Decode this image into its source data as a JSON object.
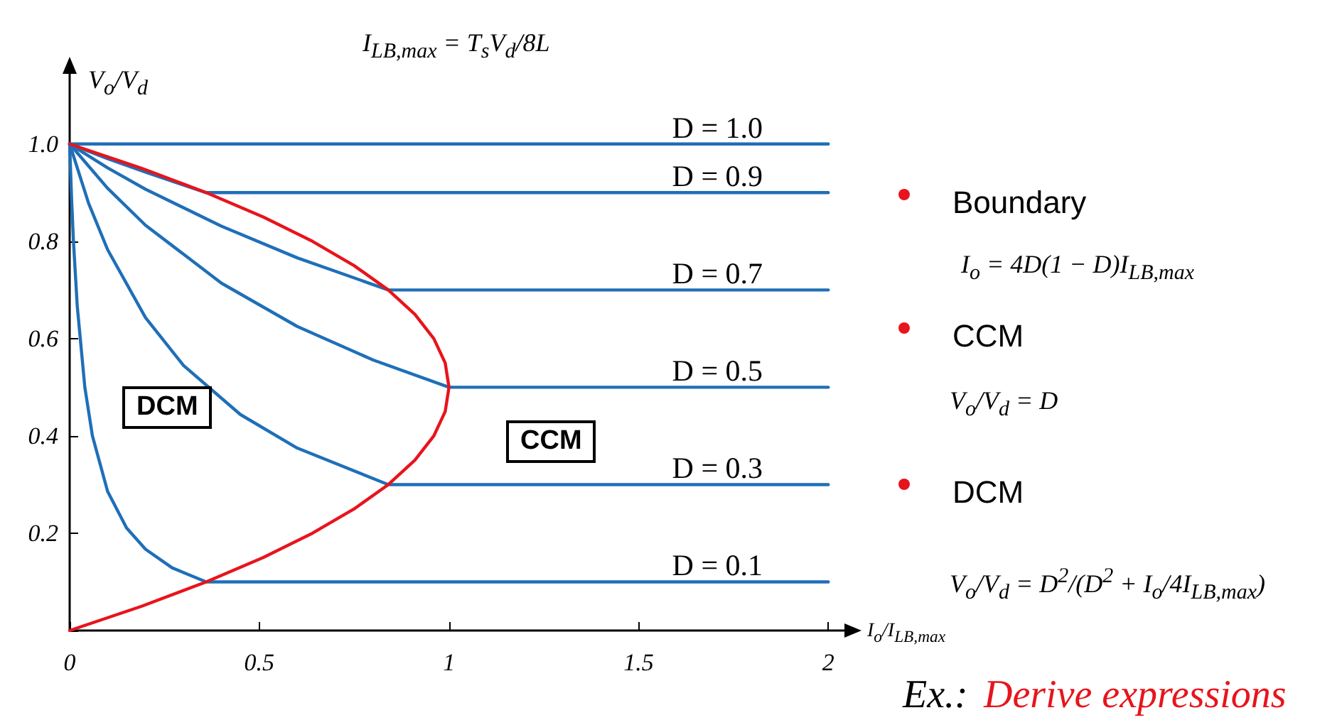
{
  "chart_data": {
    "type": "line",
    "xlabel": "I$_{o}$/I$_{LB,max}$",
    "ylabel": "V$_{o}$/V$_{d}$",
    "xlim": [
      0,
      2.05
    ],
    "ylim": [
      0,
      1.15
    ],
    "xticks": [
      0,
      0.5,
      1,
      1.5,
      2
    ],
    "yticks": [
      {
        "value": 0,
        "label": null
      },
      0.2,
      0.4,
      0.6,
      0.8,
      {
        "value": 1,
        "label": "1.0"
      }
    ],
    "grid": false,
    "legend": false,
    "marker": "none",
    "line_style": "solid",
    "series": [
      {
        "name": "D = 1.0",
        "color": "#1f6fb8",
        "x": [
          0,
          2
        ],
        "values": [
          1,
          1
        ]
      },
      {
        "name": "D = 0.9",
        "color": "#1f6fb8",
        "x": [
          0,
          0.1,
          0.2,
          0.36,
          2
        ],
        "values": [
          1,
          0.97,
          0.942,
          0.9,
          0.9
        ]
      },
      {
        "name": "D = 0.7",
        "color": "#1f6fb8",
        "x": [
          0,
          0.1,
          0.2,
          0.4,
          0.6,
          0.84,
          2
        ],
        "values": [
          1,
          0.951,
          0.907,
          0.831,
          0.766,
          0.7,
          0.7
        ]
      },
      {
        "name": "D = 0.5",
        "color": "#1f6fb8",
        "x": [
          0,
          0.1,
          0.2,
          0.4,
          0.6,
          0.8,
          1,
          2
        ],
        "values": [
          1,
          0.909,
          0.833,
          0.714,
          0.625,
          0.556,
          0.5,
          0.5
        ]
      },
      {
        "name": "D = 0.3",
        "color": "#1f6fb8",
        "x": [
          0,
          0.05,
          0.1,
          0.2,
          0.3,
          0.45,
          0.6,
          0.84,
          2
        ],
        "values": [
          1,
          0.878,
          0.783,
          0.643,
          0.545,
          0.444,
          0.375,
          0.3,
          0.3
        ]
      },
      {
        "name": "D = 0.1",
        "color": "#1f6fb8",
        "x": [
          0,
          0.005,
          0.01,
          0.02,
          0.04,
          0.06,
          0.1,
          0.15,
          0.2,
          0.27,
          0.36,
          2
        ],
        "values": [
          1,
          0.889,
          0.8,
          0.667,
          0.5,
          0.4,
          0.286,
          0.211,
          0.167,
          0.129,
          0.1,
          0.1
        ]
      },
      {
        "color": "#e8141c",
        "x": [
          0,
          0.19,
          0.36,
          0.51,
          0.64,
          0.75,
          0.84,
          0.91,
          0.96,
          0.99,
          1,
          0.99,
          0.96,
          0.91,
          0.84,
          0.75,
          0.64,
          0.51,
          0.36,
          0.19,
          0
        ],
        "values": [
          0,
          0.05,
          0.1,
          0.15,
          0.2,
          0.25,
          0.3,
          0.35,
          0.4,
          0.45,
          0.5,
          0.55,
          0.6,
          0.65,
          0.7,
          0.75,
          0.8,
          0.85,
          0.9,
          0.95,
          1
        ]
      }
    ],
    "annotations": [
      "I$_{LB,max}$ = T$_{s}$V$_{d}$/8L",
      "DCM",
      "CCM",
      "Boundary",
      "I$_{o}$ = 4D(1 − D)I$_{LB,max}$",
      "CCM",
      "V$_{o}$/V$_{d}$ = D",
      "DCM",
      "V$_{o}$/V$_{d}$ = D$^{2}$/(D$^{2}$ + I$_{o}$/4I$_{LB,max}$)",
      "Ex.:",
      "Derive expressions"
    ]
  }
}
